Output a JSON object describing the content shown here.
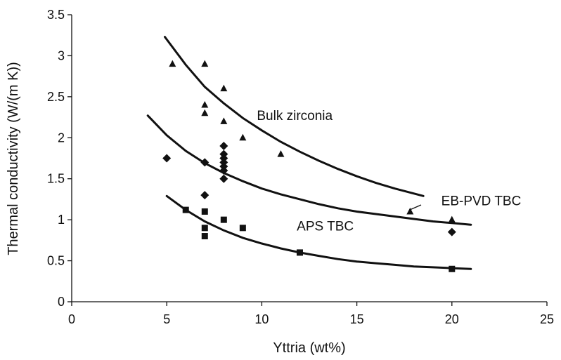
{
  "chart_data": {
    "type": "scatter",
    "xlabel": "Yttria (wt%)",
    "ylabel": "Thermal conductivity (W/(m K))",
    "xlim": [
      0,
      25
    ],
    "ylim": [
      0,
      3.5
    ],
    "xticks": [
      0,
      5,
      10,
      15,
      20,
      25
    ],
    "yticks": [
      0,
      0.5,
      1,
      1.5,
      2,
      2.5,
      3,
      3.5
    ],
    "ytick_labels": [
      "0",
      "0.5",
      "1",
      "1.5",
      "2",
      "2.5",
      "3",
      "3.5"
    ],
    "grid": false,
    "series": [
      {
        "name": "Bulk zirconia",
        "marker": "triangle",
        "points": [
          [
            5.3,
            2.9
          ],
          [
            7,
            2.9
          ],
          [
            7,
            2.4
          ],
          [
            7,
            2.3
          ],
          [
            8,
            2.6
          ],
          [
            8,
            2.2
          ],
          [
            9,
            2.0
          ],
          [
            11,
            1.8
          ],
          [
            17.8,
            1.1
          ],
          [
            20,
            1.0
          ]
        ],
        "curve": [
          [
            4.9,
            3.23
          ],
          [
            6,
            2.89
          ],
          [
            7,
            2.62
          ],
          [
            8,
            2.42
          ],
          [
            9,
            2.24
          ],
          [
            10,
            2.09
          ],
          [
            11,
            1.95
          ],
          [
            12,
            1.83
          ],
          [
            13,
            1.72
          ],
          [
            14,
            1.62
          ],
          [
            15,
            1.53
          ],
          [
            16,
            1.45
          ],
          [
            17,
            1.38
          ],
          [
            18.5,
            1.29
          ]
        ]
      },
      {
        "name": "EB-PVD TBC",
        "marker": "diamond",
        "points": [
          [
            5,
            1.75
          ],
          [
            7,
            1.7
          ],
          [
            7,
            1.3
          ],
          [
            8,
            1.9
          ],
          [
            8,
            1.8
          ],
          [
            8,
            1.75
          ],
          [
            8,
            1.7
          ],
          [
            8,
            1.65
          ],
          [
            8,
            1.6
          ],
          [
            8,
            1.5
          ],
          [
            20,
            0.85
          ]
        ],
        "curve": [
          [
            4,
            2.27
          ],
          [
            5,
            2.03
          ],
          [
            6,
            1.84
          ],
          [
            7,
            1.69
          ],
          [
            8,
            1.57
          ],
          [
            9,
            1.47
          ],
          [
            10,
            1.38
          ],
          [
            11,
            1.31
          ],
          [
            12,
            1.25
          ],
          [
            13,
            1.19
          ],
          [
            14,
            1.14
          ],
          [
            15,
            1.1
          ],
          [
            16,
            1.07
          ],
          [
            17,
            1.04
          ],
          [
            18,
            1.01
          ],
          [
            19,
            0.98
          ],
          [
            20,
            0.96
          ],
          [
            21,
            0.94
          ]
        ]
      },
      {
        "name": "APS TBC",
        "marker": "square",
        "points": [
          [
            6,
            1.12
          ],
          [
            7,
            1.1
          ],
          [
            7,
            0.9
          ],
          [
            7,
            0.8
          ],
          [
            8,
            1.0
          ],
          [
            9,
            0.9
          ],
          [
            12,
            0.6
          ],
          [
            20,
            0.4
          ]
        ],
        "curve": [
          [
            5,
            1.29
          ],
          [
            6,
            1.12
          ],
          [
            7,
            0.98
          ],
          [
            8,
            0.87
          ],
          [
            9,
            0.78
          ],
          [
            10,
            0.71
          ],
          [
            11,
            0.65
          ],
          [
            12,
            0.6
          ],
          [
            13,
            0.56
          ],
          [
            14,
            0.52
          ],
          [
            15,
            0.49
          ],
          [
            16,
            0.47
          ],
          [
            17,
            0.45
          ],
          [
            18,
            0.43
          ],
          [
            19,
            0.42
          ],
          [
            20,
            0.41
          ],
          [
            21,
            0.4
          ]
        ]
      }
    ],
    "annotations": [
      {
        "text": "Bulk zirconia",
        "x": 9,
        "y": 2.2
      },
      {
        "text": "EB-PVD TBC",
        "x": 18.7,
        "y": 1.16
      },
      {
        "text": "APS TBC",
        "x": 11.1,
        "y": 0.85
      }
    ]
  }
}
